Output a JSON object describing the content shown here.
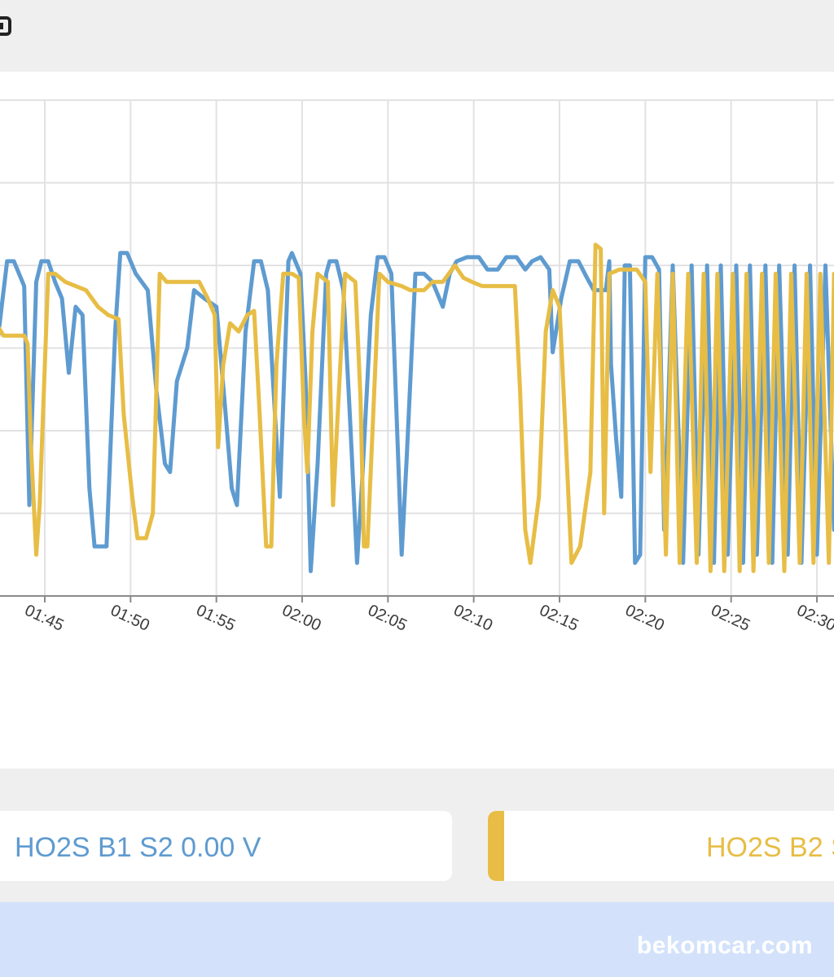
{
  "colors": {
    "b1": "#5e9bd0",
    "b2": "#e7bd45",
    "grid": "#e2e2e2",
    "axis": "#8a8a8a",
    "band": "#d3e2fa"
  },
  "header": {
    "icon": "app-icon"
  },
  "legend": {
    "b1_label": "HO2S B1 S2 0.00 V",
    "b2_label": "HO2S B2 S"
  },
  "watermark": "bekomcar.com",
  "chart_data": {
    "type": "line",
    "title": "",
    "xlabel": "",
    "ylabel": "",
    "x_ticks": [
      "01:45",
      "01:50",
      "01:55",
      "02:00",
      "02:05",
      "02:10",
      "02:15",
      "02:20",
      "02:25",
      "02:30"
    ],
    "x_range": [
      "01:42",
      "02:31"
    ],
    "y_range": [
      0,
      6
    ],
    "grid": true,
    "legend": "bottom",
    "series": [
      {
        "name": "HO2S B1 S2",
        "points": [
          [
            "01:42",
            0.8
          ],
          [
            "01:42.2",
            3
          ],
          [
            "01:42.8",
            4.05
          ],
          [
            "01:43.2",
            4.05
          ],
          [
            "01:43.8",
            3.75
          ],
          [
            "01:44.1",
            1.1
          ],
          [
            "01:44.5",
            3.8
          ],
          [
            "01:44.8",
            4.05
          ],
          [
            "01:45.2",
            4.05
          ],
          [
            "01:45.6",
            3.8
          ],
          [
            "01:46",
            3.6
          ],
          [
            "01:46.4",
            2.7
          ],
          [
            "01:46.8",
            3.5
          ],
          [
            "01:47.2",
            3.4
          ],
          [
            "01:47.6",
            1.3
          ],
          [
            "01:47.9",
            0.6
          ],
          [
            "01:48.6",
            0.6
          ],
          [
            "01:49.1",
            3.2
          ],
          [
            "01:49.4",
            4.15
          ],
          [
            "01:49.8",
            4.15
          ],
          [
            "01:50.3",
            3.9
          ],
          [
            "01:51",
            3.7
          ],
          [
            "01:51.5",
            2.5
          ],
          [
            "01:52",
            1.6
          ],
          [
            "01:52.3",
            1.5
          ],
          [
            "01:52.7",
            2.6
          ],
          [
            "01:53.3",
            3
          ],
          [
            "01:53.7",
            3.7
          ],
          [
            "01:54.3",
            3.6
          ],
          [
            "01:55",
            3.5
          ],
          [
            "01:55.5",
            2.3
          ],
          [
            "01:55.9",
            1.3
          ],
          [
            "01:56.2",
            1.1
          ],
          [
            "01:56.7",
            3.2
          ],
          [
            "01:57.2",
            4.05
          ],
          [
            "01:57.6",
            4.05
          ],
          [
            "01:58",
            3.7
          ],
          [
            "01:58.3",
            2.6
          ],
          [
            "01:58.7",
            1.2
          ],
          [
            "01:59.2",
            4.05
          ],
          [
            "01:59.4",
            4.15
          ],
          [
            "01:59.9",
            3.9
          ],
          [
            "02:00.2",
            2.6
          ],
          [
            "02:00.5",
            0.3
          ],
          [
            "02:00.9",
            1.6
          ],
          [
            "02:01.4",
            3.9
          ],
          [
            "02:01.6",
            4.05
          ],
          [
            "02:02",
            4.05
          ],
          [
            "02:02.4",
            3.7
          ],
          [
            "02:02.8",
            2.1
          ],
          [
            "02:03.2",
            0.4
          ],
          [
            "02:03.5",
            1.4
          ],
          [
            "02:04",
            3.4
          ],
          [
            "02:04.4",
            4.1
          ],
          [
            "02:04.8",
            4.1
          ],
          [
            "02:05.2",
            3.9
          ],
          [
            "02:05.5",
            2.2
          ],
          [
            "02:05.8",
            0.5
          ],
          [
            "02:06.1",
            1.7
          ],
          [
            "02:06.6",
            3.9
          ],
          [
            "02:07.1",
            3.9
          ],
          [
            "02:07.6",
            3.8
          ],
          [
            "02:08.2",
            3.5
          ],
          [
            "02:08.6",
            3.9
          ],
          [
            "02:09",
            4.05
          ],
          [
            "02:09.6",
            4.1
          ],
          [
            "02:10.3",
            4.1
          ],
          [
            "02:10.8",
            3.95
          ],
          [
            "02:11.4",
            3.95
          ],
          [
            "02:11.9",
            4.1
          ],
          [
            "02:12.5",
            4.1
          ],
          [
            "02:13",
            3.95
          ],
          [
            "02:13.4",
            4.05
          ],
          [
            "02:13.9",
            4.1
          ],
          [
            "02:14.4",
            3.95
          ],
          [
            "02:14.6",
            2.95
          ],
          [
            "02:15.1",
            3.6
          ],
          [
            "02:15.6",
            4.05
          ],
          [
            "02:16.1",
            4.05
          ],
          [
            "02:16.6",
            3.85
          ],
          [
            "02:17",
            3.7
          ],
          [
            "02:17.7",
            3.7
          ],
          [
            "02:17.9",
            4.05
          ],
          [
            "02:18",
            2.8
          ],
          [
            "02:18.3",
            1.9
          ],
          [
            "02:18.6",
            1.2
          ],
          [
            "02:18.8",
            4
          ],
          [
            "02:19.1",
            4
          ],
          [
            "02:19.4",
            0.4
          ],
          [
            "02:19.7",
            0.5
          ],
          [
            "02:20",
            4.1
          ],
          [
            "02:20.4",
            4.1
          ],
          [
            "02:20.8",
            3.95
          ],
          [
            "02:21.1",
            0.8
          ],
          [
            "02:21.6",
            4
          ],
          [
            "02:22.2",
            0.4
          ],
          [
            "02:22.7",
            4
          ],
          [
            "02:23.1",
            0.5
          ],
          [
            "02:23.6",
            4
          ],
          [
            "02:24",
            0.4
          ],
          [
            "02:24.4",
            4
          ],
          [
            "02:24.8",
            0.5
          ],
          [
            "02:25.3",
            4
          ],
          [
            "02:25.7",
            0.4
          ],
          [
            "02:26.1",
            4
          ],
          [
            "02:26.5",
            0.5
          ],
          [
            "02:27",
            4
          ],
          [
            "02:27.4",
            0.4
          ],
          [
            "02:27.8",
            4
          ],
          [
            "02:28.3",
            0.5
          ],
          [
            "02:28.7",
            4
          ],
          [
            "02:29.1",
            0.4
          ],
          [
            "02:29.6",
            4
          ],
          [
            "02:30",
            0.5
          ],
          [
            "02:30.5",
            4
          ],
          [
            "02:31",
            0.8
          ]
        ]
      },
      {
        "name": "HO2S B2 S",
        "points": [
          [
            "01:42",
            3.2
          ],
          [
            "01:42.3",
            3.25
          ],
          [
            "01:42.6",
            3.15
          ],
          [
            "01:43.8",
            3.15
          ],
          [
            "01:44",
            3.05
          ],
          [
            "01:44.2",
            1.8
          ],
          [
            "01:44.5",
            0.5
          ],
          [
            "01:44.7",
            1.1
          ],
          [
            "01:45.2",
            3.9
          ],
          [
            "01:45.6",
            3.9
          ],
          [
            "01:46.2",
            3.8
          ],
          [
            "01:47.4",
            3.7
          ],
          [
            "01:48.1",
            3.5
          ],
          [
            "01:48.7",
            3.4
          ],
          [
            "01:49.3",
            3.35
          ],
          [
            "01:49.6",
            2.2
          ],
          [
            "01:50.1",
            1.2
          ],
          [
            "01:50.4",
            0.7
          ],
          [
            "01:50.9",
            0.7
          ],
          [
            "01:51.3",
            1
          ],
          [
            "01:51.7",
            3.9
          ],
          [
            "01:52.1",
            3.8
          ],
          [
            "01:52.6",
            3.8
          ],
          [
            "01:53.6",
            3.8
          ],
          [
            "01:54",
            3.8
          ],
          [
            "01:54.5",
            3.6
          ],
          [
            "01:54.9",
            3.4
          ],
          [
            "01:55.1",
            1.8
          ],
          [
            "01:55.4",
            2.8
          ],
          [
            "01:55.8",
            3.3
          ],
          [
            "01:56.3",
            3.2
          ],
          [
            "01:56.8",
            3.4
          ],
          [
            "01:57.2",
            3.45
          ],
          [
            "01:57.5",
            2.3
          ],
          [
            "01:57.9",
            0.6
          ],
          [
            "01:58.2",
            0.6
          ],
          [
            "01:58.5",
            2.8
          ],
          [
            "01:58.9",
            3.9
          ],
          [
            "01:59.4",
            3.9
          ],
          [
            "01:59.8",
            3.85
          ],
          [
            "02:00.1",
            2.2
          ],
          [
            "02:00.3",
            1.5
          ],
          [
            "02:00.6",
            3.2
          ],
          [
            "02:00.9",
            3.9
          ],
          [
            "02:01.5",
            3.8
          ],
          [
            "02:01.8",
            1.1
          ],
          [
            "02:02.1",
            2.3
          ],
          [
            "02:02.5",
            3.9
          ],
          [
            "02:03.1",
            3.8
          ],
          [
            "02:03.4",
            2.4
          ],
          [
            "02:03.6",
            0.6
          ],
          [
            "02:03.8",
            0.6
          ],
          [
            "02:04.1",
            2
          ],
          [
            "02:04.5",
            3.9
          ],
          [
            "02:05",
            3.8
          ],
          [
            "02:05.8",
            3.75
          ],
          [
            "02:06.3",
            3.7
          ],
          [
            "02:07.1",
            3.7
          ],
          [
            "02:07.6",
            3.8
          ],
          [
            "02:08.2",
            3.8
          ],
          [
            "02:08.9",
            4
          ],
          [
            "02:09.4",
            3.85
          ],
          [
            "02:09.9",
            3.8
          ],
          [
            "02:10.5",
            3.75
          ],
          [
            "02:11.2",
            3.75
          ],
          [
            "02:12",
            3.75
          ],
          [
            "02:12.4",
            3.75
          ],
          [
            "02:12.7",
            2.5
          ],
          [
            "02:13",
            0.8
          ],
          [
            "02:13.3",
            0.4
          ],
          [
            "02:13.8",
            1.2
          ],
          [
            "02:14.2",
            3.2
          ],
          [
            "02:14.6",
            3.7
          ],
          [
            "02:15",
            3.5
          ],
          [
            "02:15.3",
            2.2
          ],
          [
            "02:15.7",
            0.4
          ],
          [
            "02:16.2",
            0.6
          ],
          [
            "02:16.8",
            1.5
          ],
          [
            "02:17.1",
            4.25
          ],
          [
            "02:17.4",
            4.2
          ],
          [
            "02:17.6",
            1
          ],
          [
            "02:17.9",
            3.9
          ],
          [
            "02:18.5",
            3.95
          ],
          [
            "02:19",
            3.95
          ],
          [
            "02:19.5",
            3.95
          ],
          [
            "02:20",
            3.8
          ],
          [
            "02:20.3",
            1.5
          ],
          [
            "02:20.7",
            3.9
          ],
          [
            "02:21.2",
            0.5
          ],
          [
            "02:21.6",
            3.9
          ],
          [
            "02:22",
            0.4
          ],
          [
            "02:22.5",
            3.9
          ],
          [
            "02:23",
            0.4
          ],
          [
            "02:23.4",
            3.9
          ],
          [
            "02:23.8",
            0.3
          ],
          [
            "02:24.2",
            3.9
          ],
          [
            "02:24.6",
            0.3
          ],
          [
            "02:25.1",
            3.9
          ],
          [
            "02:25.5",
            0.3
          ],
          [
            "02:25.9",
            3.9
          ],
          [
            "02:26.3",
            0.3
          ],
          [
            "02:26.8",
            3.9
          ],
          [
            "02:27.2",
            0.4
          ],
          [
            "02:27.6",
            3.9
          ],
          [
            "02:28.1",
            0.3
          ],
          [
            "02:28.5",
            3.9
          ],
          [
            "02:29",
            0.4
          ],
          [
            "02:29.4",
            3.9
          ],
          [
            "02:29.8",
            0.4
          ],
          [
            "02:30.2",
            3.9
          ],
          [
            "02:30.7",
            0.4
          ],
          [
            "02:31",
            3.9
          ]
        ]
      }
    ]
  }
}
